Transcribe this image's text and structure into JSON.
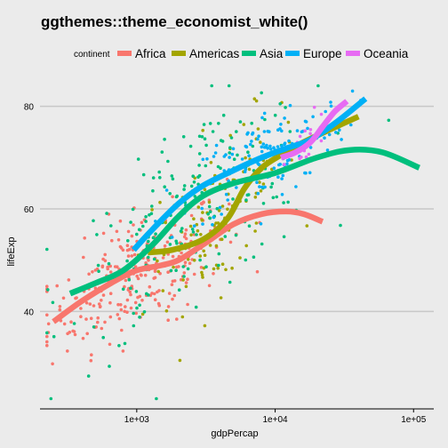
{
  "chart_data": {
    "type": "scatter",
    "title": "ggthemes::theme_economist_white()",
    "xlabel": "gdpPercap",
    "ylabel": "lifeExp",
    "x_scale": "log10",
    "xlim": [
      200,
      140000
    ],
    "ylim": [
      21,
      86
    ],
    "x_ticks": [
      {
        "value": 1000,
        "label": "1e+03"
      },
      {
        "value": 10000,
        "label": "1e+04"
      },
      {
        "value": 100000,
        "label": "1e+05"
      }
    ],
    "y_ticks": [
      {
        "value": 40,
        "label": "40"
      },
      {
        "value": 60,
        "label": "60"
      },
      {
        "value": 80,
        "label": "80"
      }
    ],
    "grid": "horizontal",
    "legend": {
      "title": "continent",
      "position": "top",
      "entries": [
        "Africa",
        "Americas",
        "Asia",
        "Europe",
        "Oceania"
      ]
    },
    "colors": {
      "Africa": "#F8766D",
      "Americas": "#A3A500",
      "Asia": "#00BF7D",
      "Europe": "#00B0F6",
      "Oceania": "#E76BF3",
      "background": "#ebebeb",
      "gridline": "#c8c8c8"
    },
    "series": [
      {
        "name": "Africa",
        "cluster": {
          "logx_mean": 3.0,
          "logx_sd": 0.32,
          "y_sd": 5.5,
          "n": 260
        },
        "smooth": [
          [
            250,
            38
          ],
          [
            400,
            42
          ],
          [
            700,
            46
          ],
          [
            1000,
            48
          ],
          [
            1500,
            49
          ],
          [
            2000,
            50
          ],
          [
            3000,
            53
          ],
          [
            5000,
            57
          ],
          [
            8000,
            59
          ],
          [
            12000,
            59.5
          ],
          [
            16000,
            59
          ],
          [
            22000,
            57.5
          ]
        ]
      },
      {
        "name": "Americas",
        "cluster": {
          "logx_mean": 3.6,
          "logx_sd": 0.28,
          "y_sd": 6.5,
          "n": 130
        },
        "smooth": [
          [
            1200,
            51.5
          ],
          [
            1800,
            52
          ],
          [
            3000,
            54
          ],
          [
            4500,
            58
          ],
          [
            6000,
            64
          ],
          [
            8000,
            68
          ],
          [
            11000,
            70.5
          ],
          [
            16000,
            73
          ],
          [
            25000,
            75.5
          ],
          [
            40000,
            78
          ]
        ]
      },
      {
        "name": "Asia",
        "cluster": {
          "logx_mean": 3.4,
          "logx_sd": 0.45,
          "y_sd": 8.5,
          "n": 200
        },
        "smooth": [
          [
            330,
            43.5
          ],
          [
            500,
            45.5
          ],
          [
            800,
            48
          ],
          [
            1300,
            53
          ],
          [
            2000,
            58.5
          ],
          [
            3000,
            62.5
          ],
          [
            5000,
            65
          ],
          [
            10000,
            67
          ],
          [
            20000,
            70
          ],
          [
            35000,
            71.5
          ],
          [
            60000,
            71
          ],
          [
            110000,
            68
          ]
        ]
      },
      {
        "name": "Europe",
        "cluster": {
          "logx_mean": 3.95,
          "logx_sd": 0.28,
          "y_sd": 4.5,
          "n": 150
        },
        "smooth": [
          [
            950,
            52
          ],
          [
            1300,
            56
          ],
          [
            2000,
            61
          ],
          [
            3000,
            64.5
          ],
          [
            5000,
            67.5
          ],
          [
            8000,
            70
          ],
          [
            12000,
            71.8
          ],
          [
            18000,
            73.5
          ],
          [
            28000,
            77
          ],
          [
            45000,
            81.5
          ]
        ]
      },
      {
        "name": "Oceania",
        "cluster": {
          "logx_mean": 4.2,
          "logx_sd": 0.13,
          "y_sd": 2.5,
          "n": 18
        },
        "smooth": [
          [
            11000,
            70
          ],
          [
            14000,
            71
          ],
          [
            18000,
            73
          ],
          [
            22000,
            76
          ],
          [
            27000,
            79
          ],
          [
            33000,
            81
          ]
        ]
      }
    ]
  }
}
